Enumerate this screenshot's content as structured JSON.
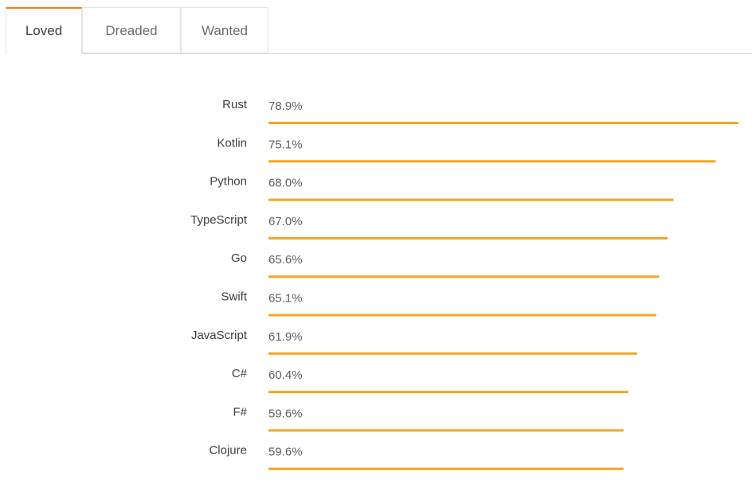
{
  "tabs": [
    {
      "label": "Loved",
      "active": true
    },
    {
      "label": "Dreaded",
      "active": false
    },
    {
      "label": "Wanted",
      "active": false
    }
  ],
  "colors": {
    "bar": "#f5a623",
    "accent": "#f48024"
  },
  "chart_data": {
    "type": "bar",
    "orientation": "horizontal",
    "categories": [
      "Rust",
      "Kotlin",
      "Python",
      "TypeScript",
      "Go",
      "Swift",
      "JavaScript",
      "C#",
      "F#",
      "Clojure"
    ],
    "values": [
      78.9,
      75.1,
      68.0,
      67.0,
      65.6,
      65.1,
      61.9,
      60.4,
      59.6,
      59.6
    ],
    "value_labels": [
      "78.9%",
      "75.1%",
      "68.0%",
      "67.0%",
      "65.6%",
      "65.1%",
      "61.9%",
      "60.4%",
      "59.6%",
      "59.6%"
    ],
    "xlim": [
      0,
      78.9
    ],
    "grid": false,
    "legend": "none"
  }
}
